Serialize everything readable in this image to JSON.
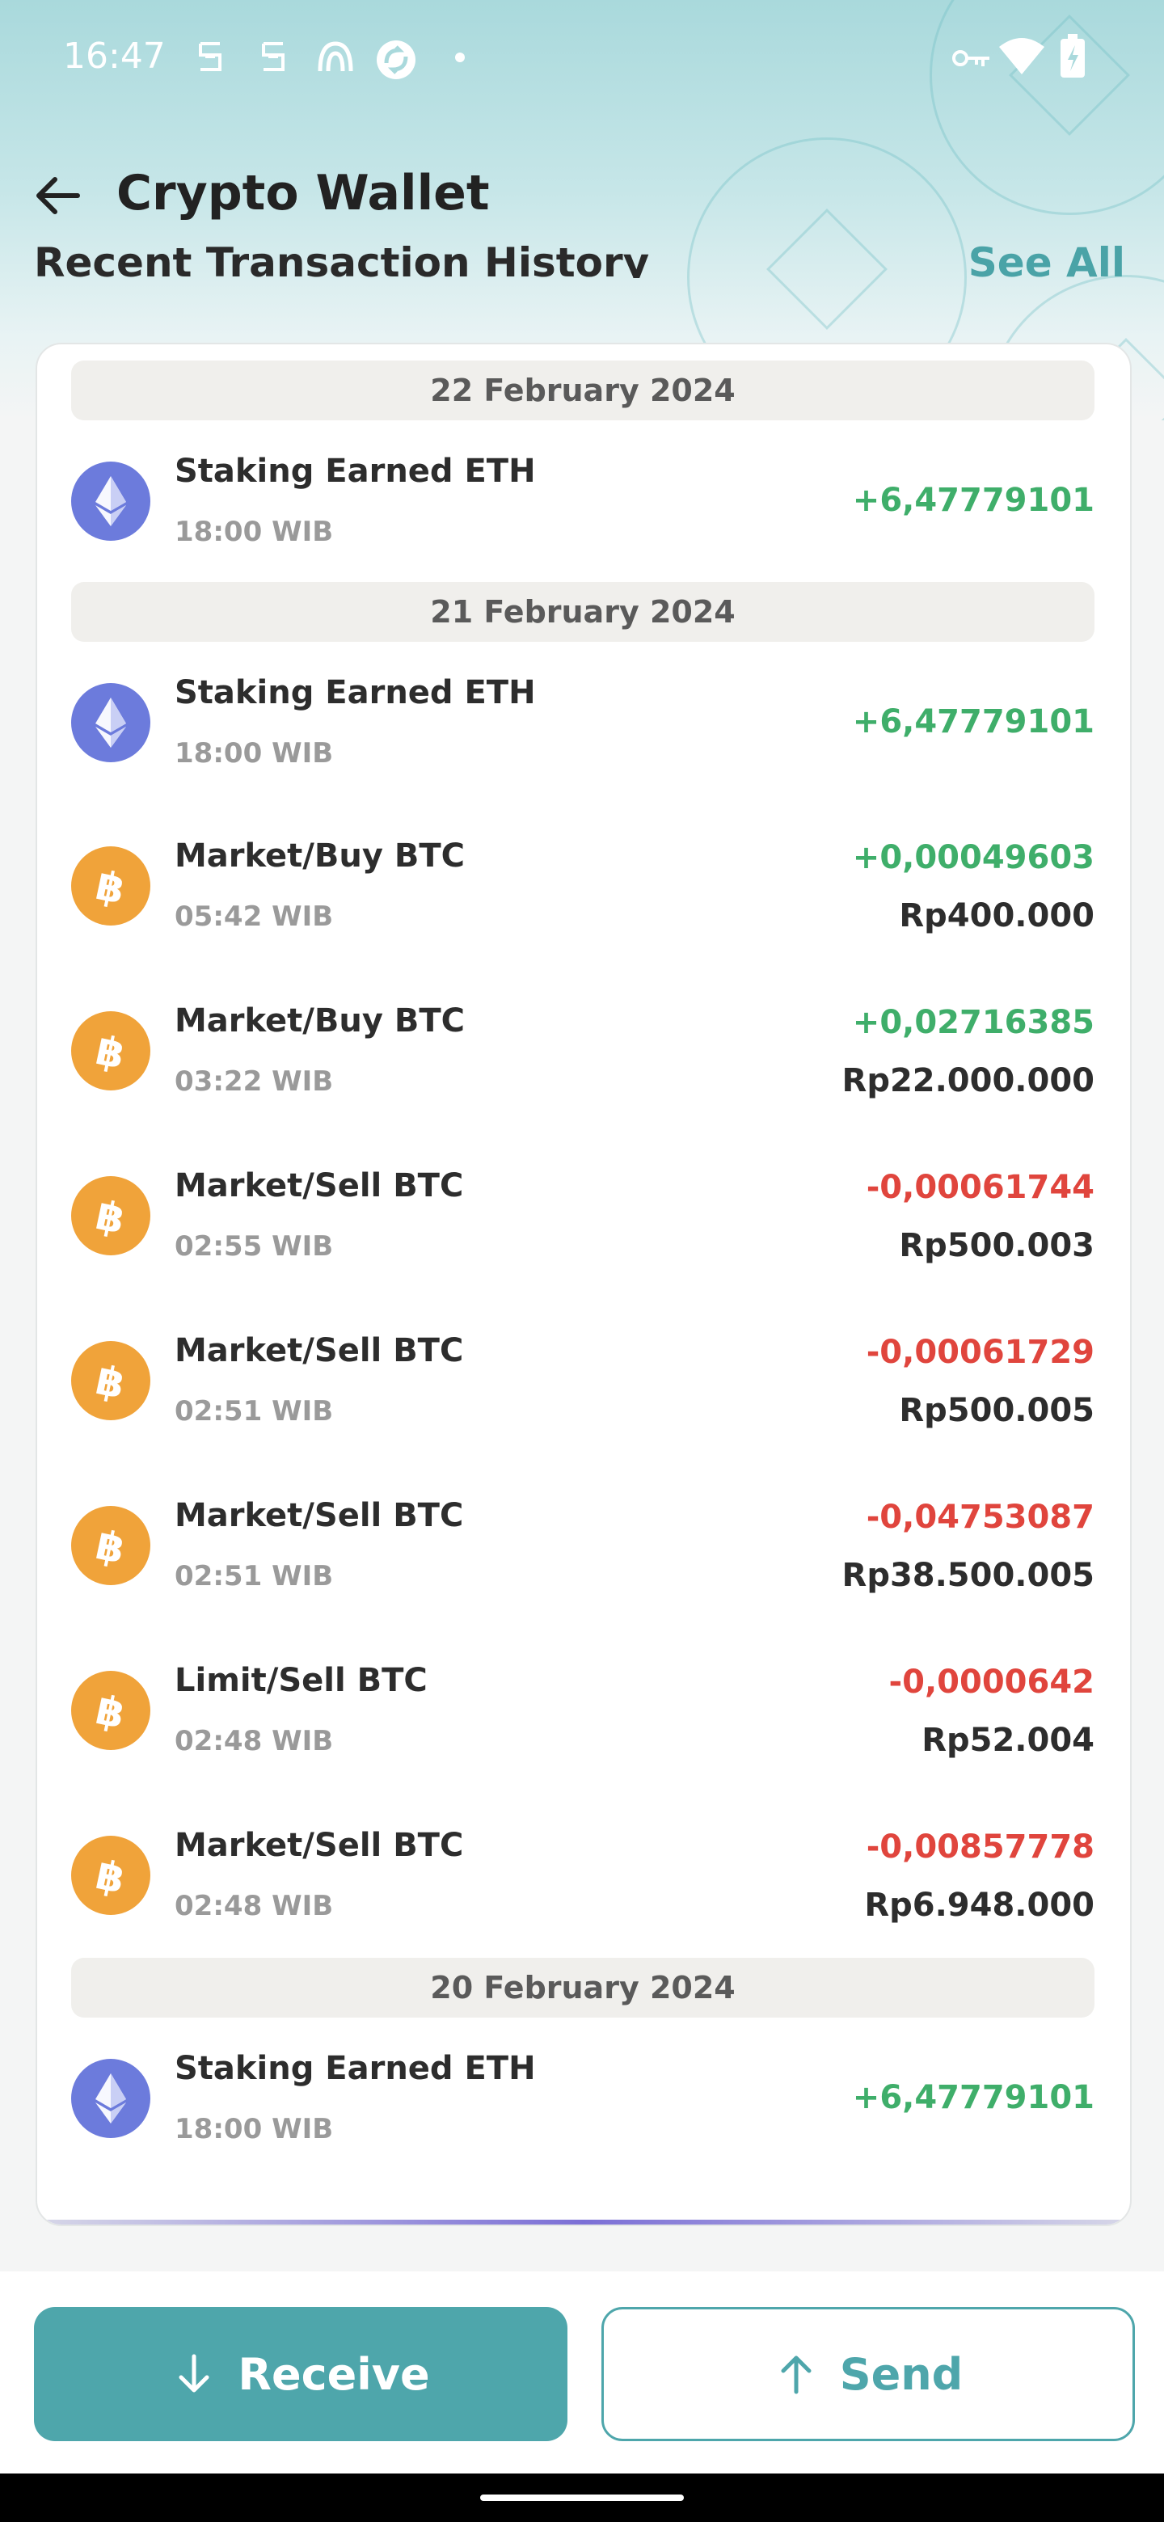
{
  "status_bar": {
    "time": "16:47"
  },
  "app_bar": {
    "title": "Crypto Wallet"
  },
  "section": {
    "title": "Recent Transaction History",
    "see_all": "See All"
  },
  "groups": [
    {
      "date": "22 February 2024",
      "transactions": [
        {
          "coin": "eth",
          "name": "Staking Earned ETH",
          "time": "18:00 WIB",
          "amount": "+6,47779101",
          "idr": ""
        }
      ]
    },
    {
      "date": "21 February 2024",
      "transactions": [
        {
          "coin": "eth",
          "name": "Staking Earned ETH",
          "time": "18:00 WIB",
          "amount": "+6,47779101",
          "idr": ""
        },
        {
          "coin": "btc",
          "name": "Market/Buy BTC",
          "time": "05:42 WIB",
          "amount": "+0,00049603",
          "idr": "Rp400.000"
        },
        {
          "coin": "btc",
          "name": "Market/Buy BTC",
          "time": "03:22 WIB",
          "amount": "+0,02716385",
          "idr": "Rp22.000.000"
        },
        {
          "coin": "btc",
          "name": "Market/Sell BTC",
          "time": "02:55 WIB",
          "amount": "-0,00061744",
          "idr": "Rp500.003"
        },
        {
          "coin": "btc",
          "name": "Market/Sell BTC",
          "time": "02:51 WIB",
          "amount": "-0,00061729",
          "idr": "Rp500.005"
        },
        {
          "coin": "btc",
          "name": "Market/Sell BTC",
          "time": "02:51 WIB",
          "amount": "-0,04753087",
          "idr": "Rp38.500.005"
        },
        {
          "coin": "btc",
          "name": "Limit/Sell BTC",
          "time": "02:48 WIB",
          "amount": "-0,0000642",
          "idr": "Rp52.004"
        },
        {
          "coin": "btc",
          "name": "Market/Sell BTC",
          "time": "02:48 WIB",
          "amount": "-0,00857778",
          "idr": "Rp6.948.000"
        }
      ]
    },
    {
      "date": "20 February 2024",
      "transactions": [
        {
          "coin": "eth",
          "name": "Staking Earned ETH",
          "time": "18:00 WIB",
          "amount": "+6,47779101",
          "idr": ""
        }
      ]
    }
  ],
  "actions": {
    "receive_label": "Receive",
    "send_label": "Send"
  },
  "colors": {
    "accent": "#4ea6ab",
    "positive": "#3fae6a",
    "negative": "#e0453d",
    "eth": "#6c7bdc",
    "btc": "#f0a33a"
  }
}
